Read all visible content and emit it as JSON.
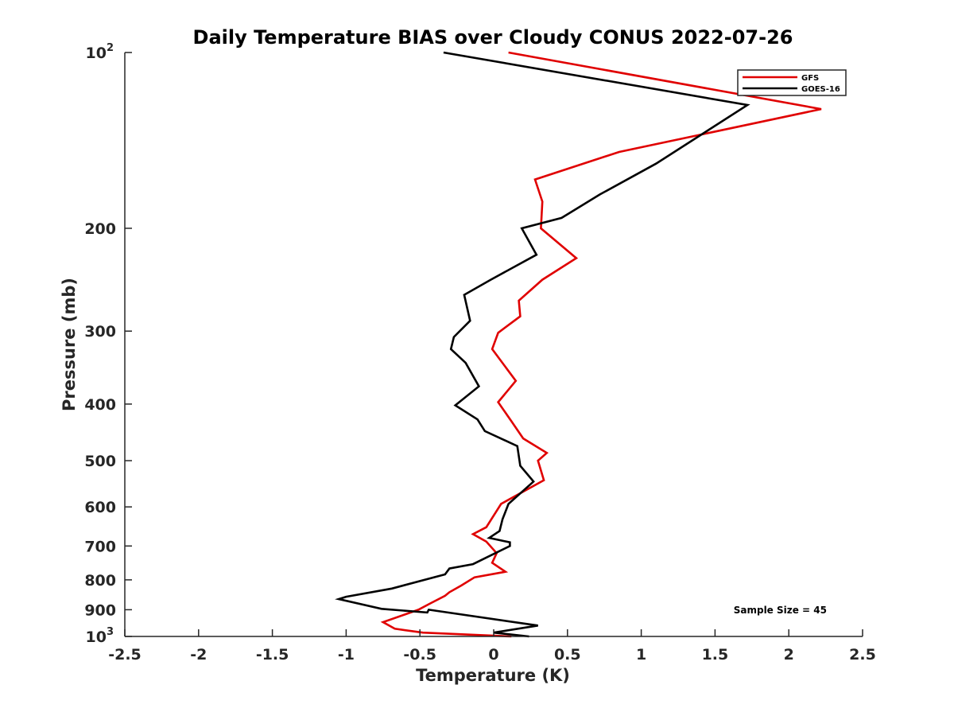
{
  "chart_data": {
    "type": "line",
    "title": "Daily Temperature BIAS over Cloudy CONUS 2022-07-26",
    "xlabel": "Temperature (K)",
    "ylabel": "Pressure (mb)",
    "xlim": [
      -2.5,
      2.5
    ],
    "ylim": [
      100,
      1000
    ],
    "y_scale": "log",
    "y_reversed": true,
    "grid": false,
    "legend_position": "top-right",
    "x_ticks": [
      "-2.5",
      "-2",
      "-1.5",
      "-1",
      "-0.5",
      "0",
      "0.5",
      "1",
      "1.5",
      "2",
      "2.5"
    ],
    "x_tick_values": [
      -2.5,
      -2,
      -1.5,
      -1,
      -0.5,
      0,
      0.5,
      1,
      1.5,
      2,
      2.5
    ],
    "y_ticks": [
      {
        "value": 100,
        "base": "10",
        "exp": "2"
      },
      {
        "value": 200,
        "label": "200"
      },
      {
        "value": 300,
        "label": "300"
      },
      {
        "value": 400,
        "label": "400"
      },
      {
        "value": 500,
        "label": "500"
      },
      {
        "value": 600,
        "label": "600"
      },
      {
        "value": 700,
        "label": "700"
      },
      {
        "value": 800,
        "label": "800"
      },
      {
        "value": 900,
        "label": "900"
      },
      {
        "value": 1000,
        "base": "10",
        "exp": "3"
      }
    ],
    "annotation": "Sample Size = 45",
    "series": [
      {
        "name": "GFS",
        "color": "#e00000",
        "points": [
          [
            0.1,
            100
          ],
          [
            2.22,
            125
          ],
          [
            0.85,
            148
          ],
          [
            0.28,
            165
          ],
          [
            0.33,
            180
          ],
          [
            0.32,
            200
          ],
          [
            0.56,
            225
          ],
          [
            0.33,
            245
          ],
          [
            0.17,
            266
          ],
          [
            0.18,
            283
          ],
          [
            0.03,
            302
          ],
          [
            -0.01,
            322
          ],
          [
            0.15,
            365
          ],
          [
            0.03,
            397
          ],
          [
            0.12,
            428
          ],
          [
            0.2,
            458
          ],
          [
            0.36,
            485
          ],
          [
            0.3,
            500
          ],
          [
            0.34,
            540
          ],
          [
            0.05,
            593
          ],
          [
            -0.05,
            650
          ],
          [
            -0.14,
            668
          ],
          [
            -0.05,
            688
          ],
          [
            0.02,
            720
          ],
          [
            -0.01,
            748
          ],
          [
            0.08,
            775
          ],
          [
            -0.13,
            792
          ],
          [
            -0.22,
            818
          ],
          [
            -0.3,
            840
          ],
          [
            -0.33,
            852
          ],
          [
            -0.43,
            878
          ],
          [
            -0.51,
            900
          ],
          [
            -0.75,
            945
          ],
          [
            -0.67,
            970
          ],
          [
            -0.48,
            985
          ],
          [
            0.12,
            1000
          ]
        ]
      },
      {
        "name": "GOES-16",
        "color": "#000000",
        "points": [
          [
            -0.34,
            100
          ],
          [
            1.72,
            123
          ],
          [
            1.1,
            155
          ],
          [
            0.72,
            175
          ],
          [
            0.46,
            192
          ],
          [
            0.19,
            200
          ],
          [
            0.29,
            222
          ],
          [
            -0.02,
            245
          ],
          [
            -0.2,
            260
          ],
          [
            -0.16,
            288
          ],
          [
            -0.27,
            307
          ],
          [
            -0.29,
            322
          ],
          [
            -0.19,
            340
          ],
          [
            -0.1,
            373
          ],
          [
            -0.26,
            402
          ],
          [
            -0.11,
            425
          ],
          [
            -0.06,
            445
          ],
          [
            0.16,
            472
          ],
          [
            0.18,
            510
          ],
          [
            0.27,
            543
          ],
          [
            0.1,
            593
          ],
          [
            0.06,
            630
          ],
          [
            0.04,
            660
          ],
          [
            -0.03,
            678
          ],
          [
            0.11,
            690
          ],
          [
            0.11,
            700
          ],
          [
            -0.14,
            752
          ],
          [
            -0.3,
            765
          ],
          [
            -0.33,
            783
          ],
          [
            -0.69,
            828
          ],
          [
            -1.0,
            855
          ],
          [
            -1.05,
            863
          ],
          [
            -0.76,
            897
          ],
          [
            -0.45,
            910
          ],
          [
            -0.44,
            900
          ],
          [
            0.3,
            958
          ],
          [
            0.0,
            985
          ],
          [
            0.24,
            1000
          ]
        ]
      }
    ]
  }
}
